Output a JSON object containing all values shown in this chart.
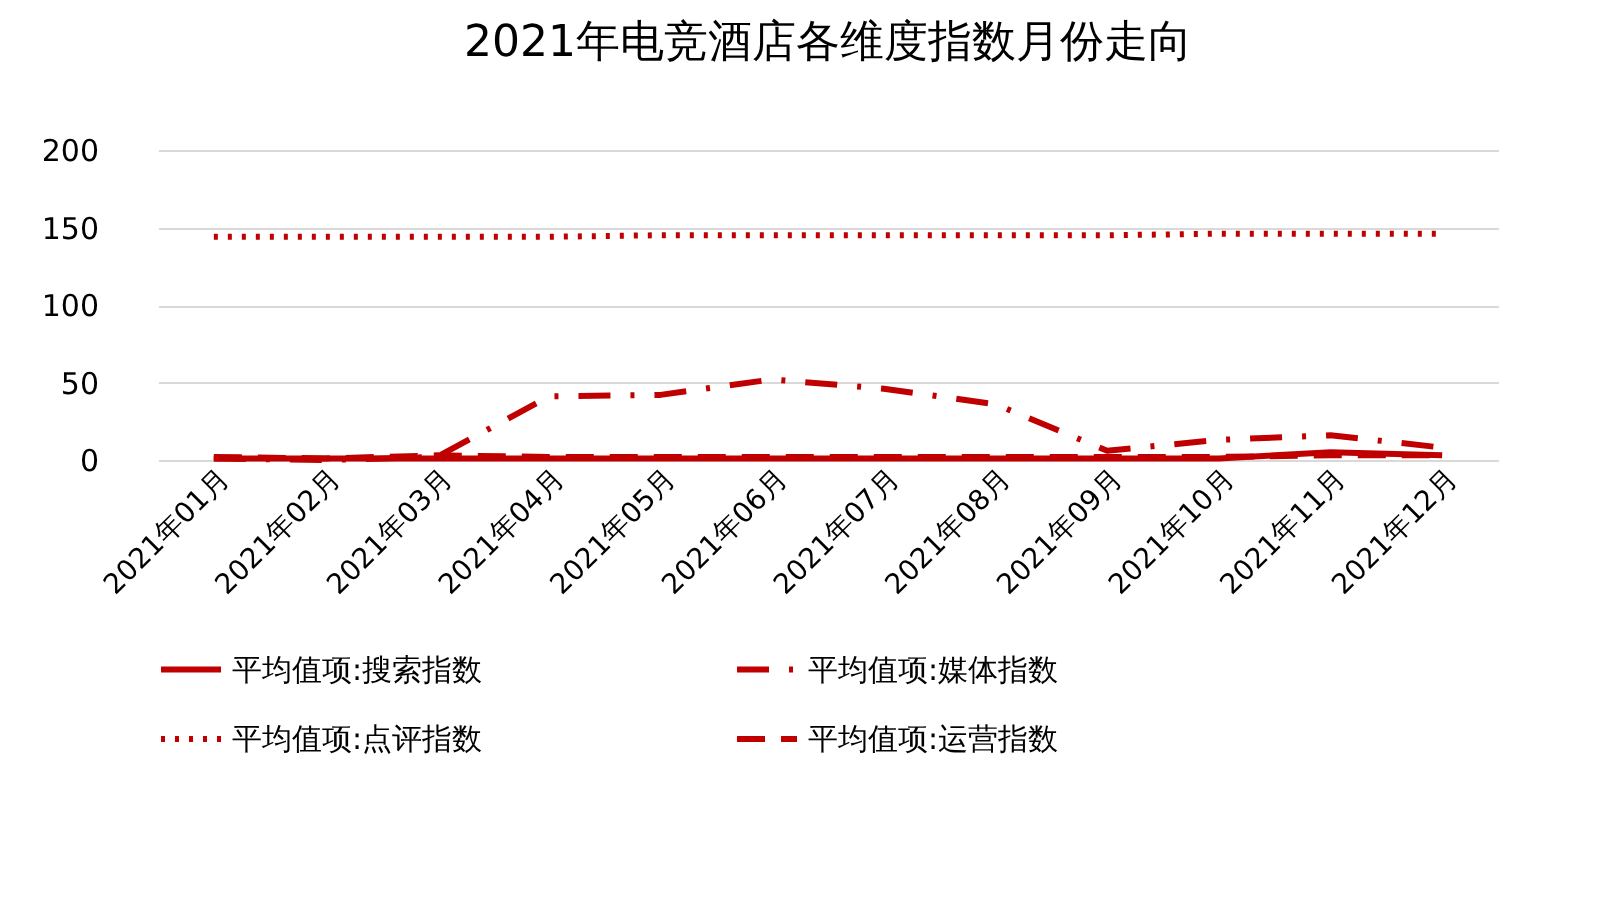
{
  "chart_data": {
    "type": "line",
    "title": "2021年电竞酒店各维度指数月份走向",
    "categories": [
      "2021年01月",
      "2021年02月",
      "2021年03月",
      "2021年04月",
      "2021年05月",
      "2021年06月",
      "2021年07月",
      "2021年08月",
      "2021年09月",
      "2021年10月",
      "2021年11月",
      "2021年12月"
    ],
    "series": [
      {
        "name": "平均值项:搜索指数",
        "color": "#c00000",
        "line_style": "solid",
        "values": [
          1,
          1,
          1,
          1,
          1,
          1,
          1,
          1,
          1,
          1,
          5,
          3
        ]
      },
      {
        "name": "平均值项:媒体指数",
        "color": "#c00000",
        "line_style": "dashdot",
        "values": [
          1,
          0,
          2,
          41,
          42,
          52,
          46,
          36,
          6,
          13,
          16,
          8
        ]
      },
      {
        "name": "平均值项:点评指数",
        "color": "#c00000",
        "line_style": "dotted",
        "values": [
          144,
          144,
          144,
          144,
          145,
          145,
          145,
          145,
          145,
          146,
          146,
          146
        ]
      },
      {
        "name": "平均值项:运营指数",
        "color": "#c00000",
        "line_style": "dashed",
        "values": [
          2,
          1,
          3,
          2,
          2,
          2,
          2,
          2,
          2,
          2,
          3,
          3
        ]
      }
    ],
    "ylim": [
      0,
      200
    ],
    "yticks": [
      0,
      50,
      100,
      150,
      200
    ],
    "grid": "y",
    "legend": "bottom"
  }
}
